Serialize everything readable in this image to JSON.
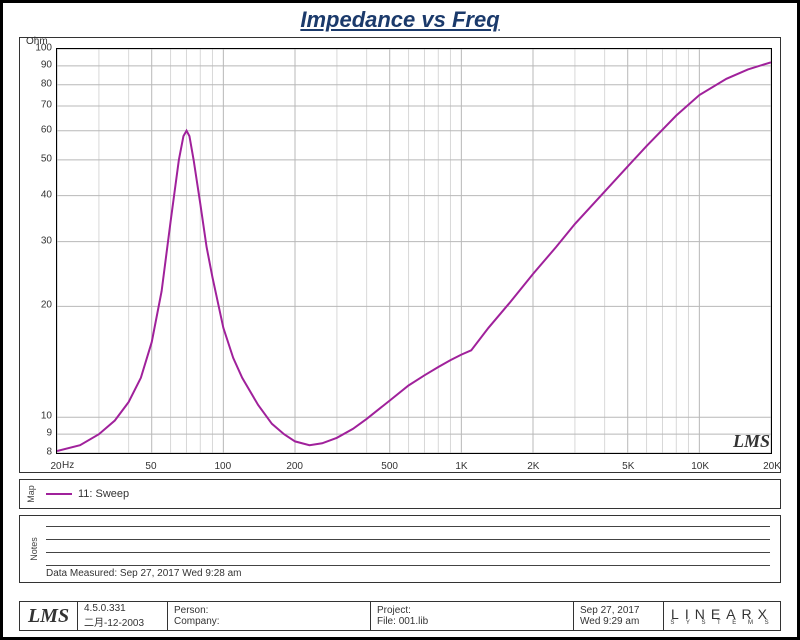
{
  "title": "Impedance vs Freq",
  "title_color": "#1b3a6b",
  "chart": {
    "type": "line",
    "y_unit": "Ohm",
    "x_unit": "Hz",
    "x_scale": "log",
    "x_min": 20,
    "x_max": 20000,
    "y_scale": "log",
    "y_min": 8,
    "y_max": 100,
    "x_ticks": [
      {
        "v": 20,
        "l": "20"
      },
      {
        "v": 50,
        "l": "50"
      },
      {
        "v": 100,
        "l": "100"
      },
      {
        "v": 200,
        "l": "200"
      },
      {
        "v": 500,
        "l": "500"
      },
      {
        "v": 1000,
        "l": "1K"
      },
      {
        "v": 2000,
        "l": "2K"
      },
      {
        "v": 5000,
        "l": "5K"
      },
      {
        "v": 10000,
        "l": "10K"
      },
      {
        "v": 20000,
        "l": "20K"
      }
    ],
    "y_ticks": [
      {
        "v": 8,
        "l": "8"
      },
      {
        "v": 9,
        "l": "9"
      },
      {
        "v": 10,
        "l": "10"
      },
      {
        "v": 20,
        "l": "20"
      },
      {
        "v": 30,
        "l": "30"
      },
      {
        "v": 40,
        "l": "40"
      },
      {
        "v": 50,
        "l": "50"
      },
      {
        "v": 60,
        "l": "60"
      },
      {
        "v": 70,
        "l": "70"
      },
      {
        "v": 80,
        "l": "80"
      },
      {
        "v": 90,
        "l": "90"
      },
      {
        "v": 100,
        "l": "100"
      }
    ],
    "x_minor": [
      30,
      40,
      60,
      70,
      80,
      90,
      300,
      400,
      600,
      700,
      800,
      900,
      3000,
      4000,
      6000,
      7000,
      8000,
      9000
    ],
    "grid_color": "#b8b8b8",
    "minor_grid_color": "#d8d8d8",
    "background": "#ffffff",
    "series": [
      {
        "name": "11: Sweep",
        "color": "#a0219b",
        "width": 2,
        "points": [
          [
            20,
            8.1
          ],
          [
            25,
            8.4
          ],
          [
            30,
            9.0
          ],
          [
            35,
            9.8
          ],
          [
            40,
            11.0
          ],
          [
            45,
            12.8
          ],
          [
            50,
            16.0
          ],
          [
            55,
            22.0
          ],
          [
            60,
            34.0
          ],
          [
            65,
            50.0
          ],
          [
            68,
            58.0
          ],
          [
            70,
            60.0
          ],
          [
            72,
            58.0
          ],
          [
            75,
            50.0
          ],
          [
            80,
            38.0
          ],
          [
            85,
            29.0
          ],
          [
            90,
            24.0
          ],
          [
            100,
            17.5
          ],
          [
            110,
            14.5
          ],
          [
            120,
            12.8
          ],
          [
            140,
            10.8
          ],
          [
            160,
            9.6
          ],
          [
            180,
            9.0
          ],
          [
            200,
            8.6
          ],
          [
            230,
            8.4
          ],
          [
            260,
            8.5
          ],
          [
            300,
            8.8
          ],
          [
            350,
            9.3
          ],
          [
            400,
            9.9
          ],
          [
            500,
            11.1
          ],
          [
            600,
            12.2
          ],
          [
            700,
            13.0
          ],
          [
            800,
            13.7
          ],
          [
            900,
            14.3
          ],
          [
            1000,
            14.8
          ],
          [
            1100,
            15.2
          ],
          [
            1300,
            17.5
          ],
          [
            1600,
            20.5
          ],
          [
            2000,
            24.5
          ],
          [
            2500,
            29.0
          ],
          [
            3000,
            33.5
          ],
          [
            4000,
            41.0
          ],
          [
            5000,
            48.0
          ],
          [
            6000,
            54.5
          ],
          [
            8000,
            66.0
          ],
          [
            10000,
            75.0
          ],
          [
            13000,
            83.0
          ],
          [
            16000,
            88.0
          ],
          [
            20000,
            92.0
          ]
        ]
      }
    ],
    "watermark": "LMS"
  },
  "map": {
    "sidelabel": "Map",
    "legend_label": "11: Sweep",
    "legend_color": "#a0219b"
  },
  "notes": {
    "sidelabel": "Notes",
    "lines": 4,
    "data_measured": "Data Measured: Sep 27, 2017  Wed  9:28 am"
  },
  "footer": {
    "lms": "LMS",
    "version": "4.5.0.331",
    "date_small": "二月-12-2003",
    "person_label": "Person:",
    "person": "",
    "company_label": "Company:",
    "company": "",
    "project_label": "Project:",
    "project": "",
    "file_label": "File:",
    "file": "001.lib",
    "date": "Sep 27, 2017",
    "time": "Wed  9:29 am",
    "linearx": "LINEARX",
    "linearx_sub": "S Y S T E M S"
  }
}
